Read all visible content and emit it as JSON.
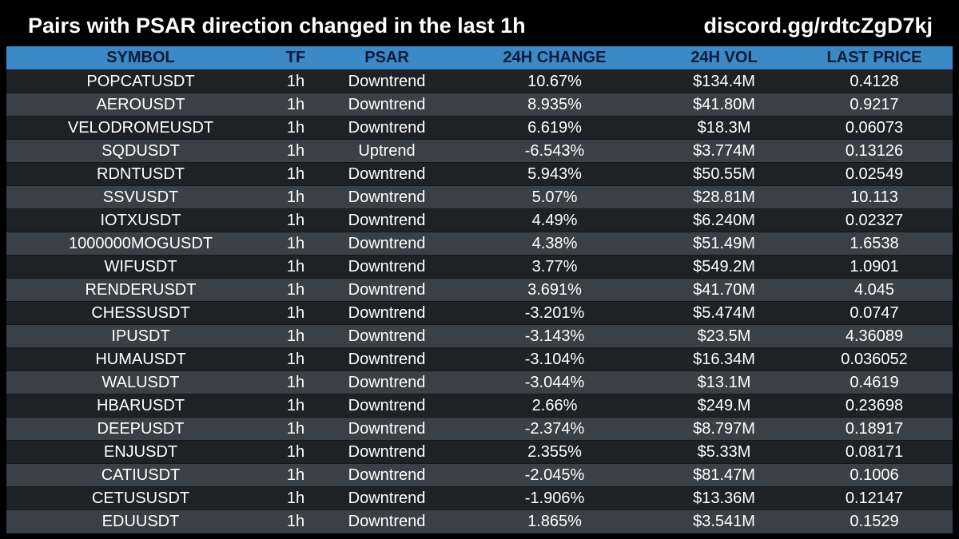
{
  "header": {
    "title": "Pairs with PSAR direction changed in the last 1h",
    "discord": "discord.gg/rdtcZgD7kj"
  },
  "table": {
    "columns": [
      "SYMBOL",
      "TF",
      "PSAR",
      "24H CHANGE",
      "24H VOL",
      "LAST PRICE"
    ],
    "rows": [
      [
        "POPCATUSDT",
        "1h",
        "Downtrend",
        "10.67%",
        "$134.4M",
        "0.4128"
      ],
      [
        "AEROUSDT",
        "1h",
        "Downtrend",
        "8.935%",
        "$41.80M",
        "0.9217"
      ],
      [
        "VELODROMEUSDT",
        "1h",
        "Downtrend",
        "6.619%",
        "$18.3M",
        "0.06073"
      ],
      [
        "SQDUSDT",
        "1h",
        "Uptrend",
        "-6.543%",
        "$3.774M",
        "0.13126"
      ],
      [
        "RDNTUSDT",
        "1h",
        "Downtrend",
        "5.943%",
        "$50.55M",
        "0.02549"
      ],
      [
        "SSVUSDT",
        "1h",
        "Downtrend",
        "5.07%",
        "$28.81M",
        "10.113"
      ],
      [
        "IOTXUSDT",
        "1h",
        "Downtrend",
        "4.49%",
        "$6.240M",
        "0.02327"
      ],
      [
        "1000000MOGUSDT",
        "1h",
        "Downtrend",
        "4.38%",
        "$51.49M",
        "1.6538"
      ],
      [
        "WIFUSDT",
        "1h",
        "Downtrend",
        "3.77%",
        "$549.2M",
        "1.0901"
      ],
      [
        "RENDERUSDT",
        "1h",
        "Downtrend",
        "3.691%",
        "$41.70M",
        "4.045"
      ],
      [
        "CHESSUSDT",
        "1h",
        "Downtrend",
        "-3.201%",
        "$5.474M",
        "0.0747"
      ],
      [
        "IPUSDT",
        "1h",
        "Downtrend",
        "-3.143%",
        "$23.5M",
        "4.36089"
      ],
      [
        "HUMAUSDT",
        "1h",
        "Downtrend",
        "-3.104%",
        "$16.34M",
        "0.036052"
      ],
      [
        "WALUSDT",
        "1h",
        "Downtrend",
        "-3.044%",
        "$13.1M",
        "0.4619"
      ],
      [
        "HBARUSDT",
        "1h",
        "Downtrend",
        "2.66%",
        "$249.M",
        "0.23698"
      ],
      [
        "DEEPUSDT",
        "1h",
        "Downtrend",
        "-2.374%",
        "$8.797M",
        "0.18917"
      ],
      [
        "ENJUSDT",
        "1h",
        "Downtrend",
        "2.355%",
        "$5.33M",
        "0.08171"
      ],
      [
        "CATIUSDT",
        "1h",
        "Downtrend",
        "-2.045%",
        "$81.47M",
        "0.1006"
      ],
      [
        "CETUSUSDT",
        "1h",
        "Downtrend",
        "-1.906%",
        "$13.36M",
        "0.12147"
      ],
      [
        "EDUUSDT",
        "1h",
        "Downtrend",
        "1.865%",
        "$3.541M",
        "0.1529"
      ]
    ]
  },
  "colors": {
    "background": "#000000",
    "header_row": "#3a8ac8",
    "header_text": "#0d1a35",
    "row_dark": "#1e2227",
    "row_light": "#394047",
    "cell_text": "#ffffff"
  }
}
